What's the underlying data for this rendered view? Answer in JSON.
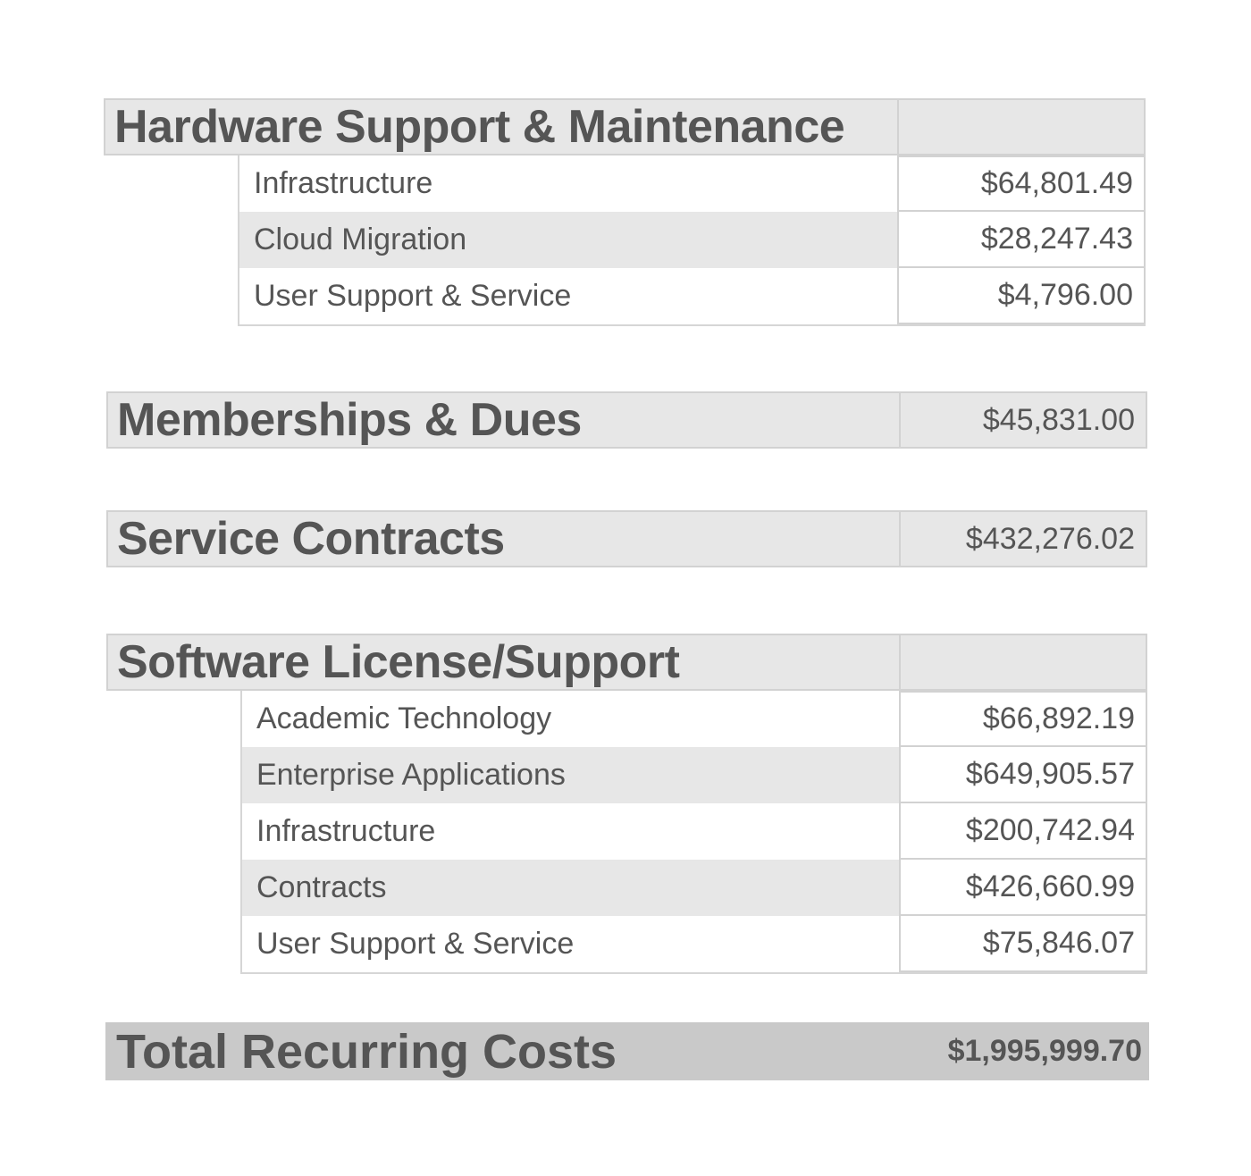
{
  "sections": [
    {
      "title": "Hardware Support & Maintenance",
      "value": "",
      "items": [
        {
          "label": "Infrastructure",
          "value": "$64,801.49"
        },
        {
          "label": "Cloud Migration",
          "value": "$28,247.43"
        },
        {
          "label": "User Support & Service",
          "value": "$4,796.00"
        }
      ]
    },
    {
      "title": "Memberships & Dues",
      "value": "$45,831.00",
      "items": []
    },
    {
      "title": "Service Contracts",
      "value": "$432,276.02",
      "items": []
    },
    {
      "title": "Software License/Support",
      "value": "",
      "items": [
        {
          "label": "Academic Technology",
          "value": "$66,892.19"
        },
        {
          "label": "Enterprise Applications",
          "value": "$649,905.57"
        },
        {
          "label": "Infrastructure",
          "value": "$200,742.94"
        },
        {
          "label": "Contracts",
          "value": "$426,660.99"
        },
        {
          "label": "User Support & Service",
          "value": "$75,846.07"
        }
      ]
    }
  ],
  "total": {
    "label": "Total Recurring Costs",
    "value": "$1,995,999.70"
  }
}
